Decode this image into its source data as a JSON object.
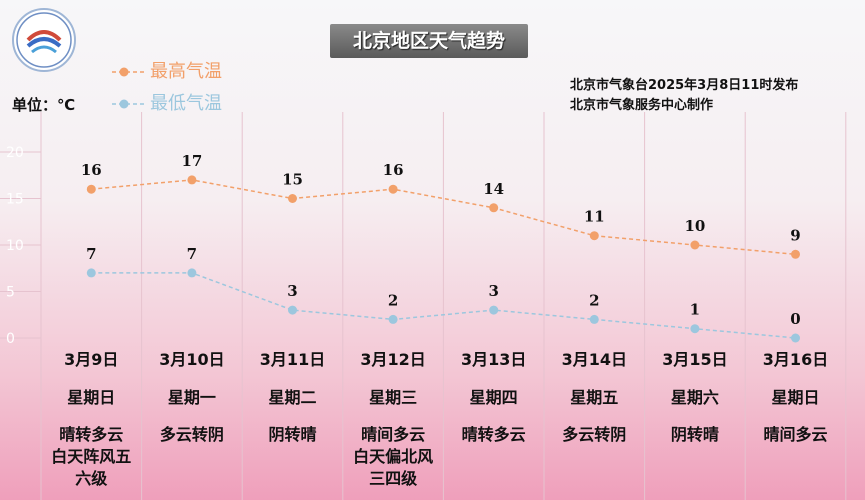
{
  "title": "北京地区天气趋势",
  "unit": "单位：℃",
  "issuer": {
    "line1": "北京市气象台2025年3月8日11时发布",
    "line2": "北京市气象服务中心制作"
  },
  "colors": {
    "high": "#f2a06a",
    "low": "#9cc7de"
  },
  "chart_data": {
    "type": "line",
    "categories": [
      "3月9日",
      "3月10日",
      "3月11日",
      "3月12日",
      "3月13日",
      "3月14日",
      "3月15日",
      "3月16日"
    ],
    "series": [
      {
        "name": "最高气温",
        "values": [
          16,
          17,
          15,
          16,
          14,
          11,
          10,
          9
        ]
      },
      {
        "name": "最低气温",
        "values": [
          7,
          7,
          3,
          2,
          3,
          2,
          1,
          0
        ]
      }
    ],
    "ylim": [
      0,
      20
    ],
    "yticks": [
      0,
      5,
      10,
      15,
      20
    ],
    "grid": true,
    "legend": "top-left"
  },
  "days": [
    {
      "date": "3月9日",
      "weekday": "星期日",
      "weather": "晴转多云 白天阵风五 六级"
    },
    {
      "date": "3月10日",
      "weekday": "星期一",
      "weather": "多云转阴"
    },
    {
      "date": "3月11日",
      "weekday": "星期二",
      "weather": "阴转晴"
    },
    {
      "date": "3月12日",
      "weekday": "星期三",
      "weather": "晴间多云 白天偏北风 三四级"
    },
    {
      "date": "3月13日",
      "weekday": "星期四",
      "weather": "晴转多云"
    },
    {
      "date": "3月14日",
      "weekday": "星期五",
      "weather": "多云转阴"
    },
    {
      "date": "3月15日",
      "weekday": "星期六",
      "weather": "阴转晴"
    },
    {
      "date": "3月16日",
      "weekday": "星期日",
      "weather": "晴间多云"
    }
  ]
}
